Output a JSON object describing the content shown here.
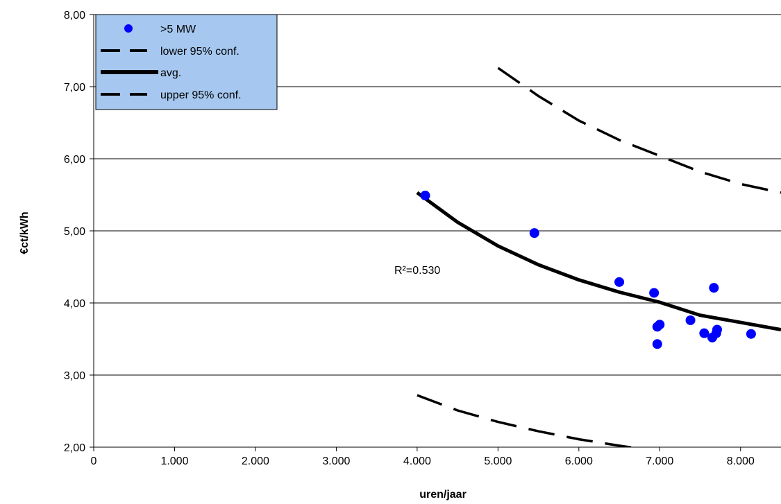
{
  "chart_data": {
    "type": "scatter",
    "xlabel": "uren/jaar",
    "ylabel": "€ct/kWh",
    "xlim": [
      0,
      8500
    ],
    "ylim": [
      2,
      8
    ],
    "x_ticks": [
      0,
      1000,
      2000,
      3000,
      4000,
      5000,
      6000,
      7000,
      8000
    ],
    "x_tick_labels": [
      "0",
      "1.000",
      "2.000",
      "3.000",
      "4.000",
      "5.000",
      "6.000",
      "7.000",
      "8.000"
    ],
    "y_ticks": [
      2,
      3,
      4,
      5,
      6,
      7,
      8
    ],
    "y_tick_labels": [
      "2,00",
      "3,00",
      "4,00",
      "5,00",
      "6,00",
      "7,00",
      "8,00"
    ],
    "grid": "horizontal",
    "legend_position": "top-left",
    "annotation": "R²=0.530",
    "series": [
      {
        "name": ">5 MW",
        "kind": "points",
        "color": "#0000ff",
        "x": [
          4100,
          5450,
          6500,
          6930,
          6970,
          7000,
          6970,
          7380,
          7550,
          7650,
          7670,
          7700,
          7710,
          8130
        ],
        "y": [
          5.49,
          4.97,
          4.29,
          4.14,
          3.67,
          3.7,
          3.43,
          3.76,
          3.58,
          3.52,
          4.21,
          3.58,
          3.63,
          3.57
        ]
      },
      {
        "name": "lower 95% conf.",
        "kind": "dashed",
        "color": "#000000",
        "x": [
          4000,
          4500,
          5000,
          5500,
          6000,
          6500,
          7000,
          7500,
          8000,
          8500
        ],
        "y": [
          2.72,
          2.51,
          2.35,
          2.22,
          2.11,
          2.02,
          1.94,
          1.87,
          1.81,
          1.76
        ]
      },
      {
        "name": "avg.",
        "kind": "solid",
        "color": "#000000",
        "x": [
          4000,
          4500,
          5000,
          5500,
          6000,
          6500,
          7000,
          7500,
          8000,
          8500
        ],
        "y": [
          5.53,
          5.12,
          4.79,
          4.53,
          4.32,
          4.15,
          4.01,
          3.83,
          3.73,
          3.63
        ]
      },
      {
        "name": "upper 95% conf.",
        "kind": "dashed",
        "color": "#000000",
        "x": [
          5000,
          5500,
          6000,
          6500,
          7000,
          7500,
          8000,
          8500
        ],
        "y": [
          7.26,
          6.87,
          6.53,
          6.26,
          6.04,
          5.82,
          5.65,
          5.53
        ]
      }
    ]
  },
  "legend": {
    "items": [
      ">5 MW",
      "lower 95% conf.",
      "avg.",
      "upper 95% conf."
    ],
    "background": "#a6c8f0"
  }
}
